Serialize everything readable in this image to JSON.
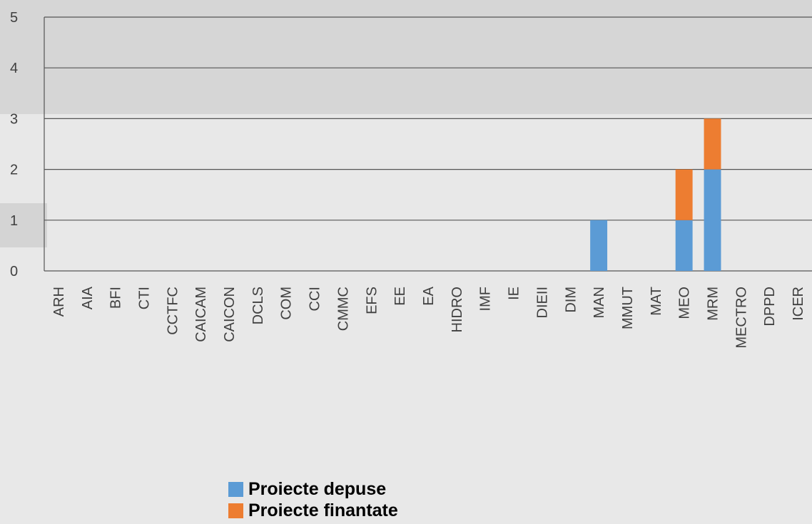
{
  "chart_data": {
    "type": "bar",
    "stacked": true,
    "title": "",
    "xlabel": "",
    "ylabel": "",
    "categories": [
      "ARH",
      "AIA",
      "BFI",
      "CTI",
      "CCTFC",
      "CAICAM",
      "CAICON",
      "DCLS",
      "COM",
      "CCI",
      "CMMC",
      "EFS",
      "EE",
      "EA",
      "HIDRO",
      "IMF",
      "IE",
      "DIEII",
      "DIM",
      "MAN",
      "MMUT",
      "MAT",
      "MEO",
      "MRM",
      "MECTRO",
      "DPPD",
      "ICER"
    ],
    "series": [
      {
        "name": "Proiecte depuse",
        "color": "#5b9bd5",
        "values": [
          0,
          0,
          0,
          0,
          0,
          0,
          0,
          0,
          0,
          0,
          0,
          0,
          0,
          0,
          0,
          0,
          0,
          0,
          0,
          1,
          0,
          0,
          1,
          2,
          0,
          0,
          0
        ]
      },
      {
        "name": "Proiecte finantate",
        "color": "#ed7d31",
        "values": [
          0,
          0,
          0,
          0,
          0,
          0,
          0,
          0,
          0,
          0,
          0,
          0,
          0,
          0,
          0,
          0,
          0,
          0,
          0,
          0,
          0,
          0,
          1,
          1,
          0,
          0,
          0
        ]
      }
    ],
    "ylim": [
      0,
      5
    ],
    "yticks": [
      "0",
      "1",
      "2",
      "3",
      "4",
      "5"
    ],
    "grid": true,
    "legend_position": "bottom"
  },
  "legend": {
    "items": [
      {
        "label": "Proiecte depuse",
        "color": "#5b9bd5"
      },
      {
        "label": "Proiecte finantate",
        "color": "#ed7d31"
      }
    ]
  }
}
